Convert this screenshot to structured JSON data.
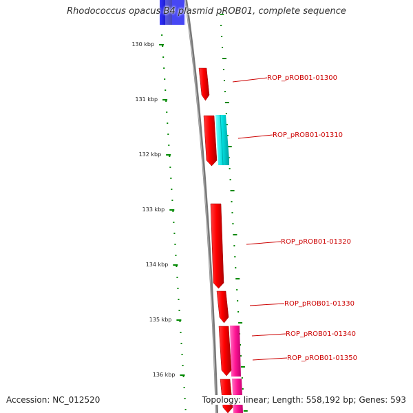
{
  "title": "Rhodococcus opacus B4 plasmid pROB01, complete sequence",
  "footer": {
    "accession": "Accession: NC_012520",
    "summary": "Topology: linear; Length: 558,192 bp; Genes: 593"
  },
  "scale": {
    "unit": "kbp",
    "ticks": [
      "130 kbp",
      "131 kbp",
      "132 kbp",
      "133 kbp",
      "134 kbp",
      "135 kbp",
      "136 kbp"
    ]
  },
  "genes": [
    {
      "label": "ROP_pROB01-01300",
      "color": "#ff0000"
    },
    {
      "label": "ROP_pROB01-01310",
      "color": "#ff0000"
    },
    {
      "label": "ROP_pROB01-01320",
      "color": "#ff0000"
    },
    {
      "label": "ROP_pROB01-01330",
      "color": "#ff0000"
    },
    {
      "label": "ROP_pROB01-01340",
      "color": "#ff0000"
    },
    {
      "label": "ROP_pROB01-01350",
      "color": "#ff0000"
    }
  ],
  "other_features": [
    {
      "name": "top-blue-feature",
      "color": "#0000cc"
    },
    {
      "name": "cyan-feature",
      "color": "#00dddd"
    },
    {
      "name": "magenta-feature",
      "color": "#ff1493"
    }
  ],
  "colors": {
    "backbone": "#888888",
    "scale_dots": "#008800",
    "label_text": "#cc0000"
  }
}
